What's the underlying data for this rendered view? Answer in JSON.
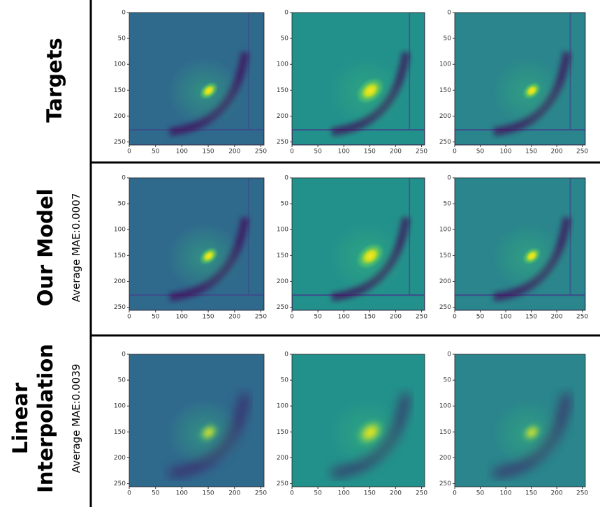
{
  "rows": [
    {
      "title": [
        "Targets"
      ]
    },
    {
      "title": [
        "Our Model"
      ],
      "subtitle": "Average MAE:0.0007"
    },
    {
      "title": [
        "Linear",
        "Interpolation"
      ],
      "subtitle": "Average MAE:0.0039"
    }
  ],
  "axis": {
    "ticks": [
      0,
      50,
      100,
      150,
      200,
      250
    ],
    "lim": [
      0,
      256
    ]
  }
}
